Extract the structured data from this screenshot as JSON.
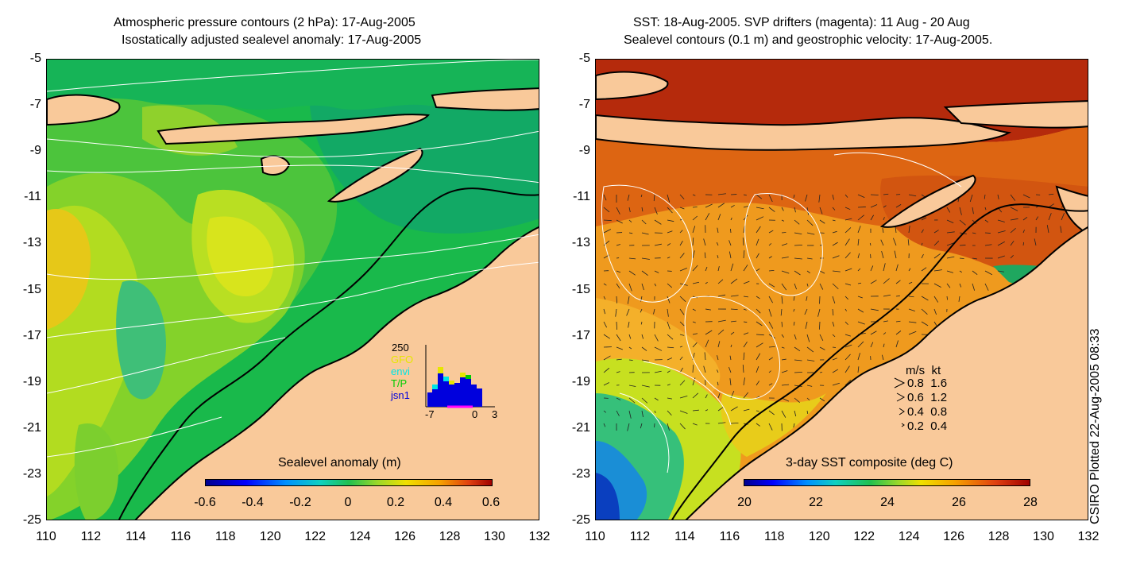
{
  "left": {
    "title_line1": "Atmospheric pressure contours (2 hPa): 17-Aug-2005",
    "title_line2": "Isostatically adjusted sealevel anomaly: 17-Aug-2005",
    "colorbar_title": "Sealevel anomaly (m)",
    "colorbar_ticks": [
      "-0.6",
      "-0.4",
      "-0.2",
      "0",
      "0.2",
      "0.4",
      "0.6"
    ],
    "histogram": {
      "ymax_label": "250",
      "legend": [
        {
          "label": "GFO",
          "color": "#e6e600"
        },
        {
          "label": "envi",
          "color": "#00e5e5"
        },
        {
          "label": "T/P",
          "color": "#00cc00"
        },
        {
          "label": "jsn1",
          "color": "#0000dd"
        }
      ],
      "x_ticks": [
        "-7",
        "0",
        "3"
      ]
    }
  },
  "right": {
    "title_line1": "SST: 18-Aug-2005. SVP drifters (magenta): 11 Aug - 20 Aug",
    "title_line2": "Sealevel contours (0.1 m) and geostrophic velocity: 17-Aug-2005.",
    "colorbar_title": "3-day SST composite (deg C)",
    "colorbar_ticks": [
      "20",
      "22",
      "24",
      "26",
      "28"
    ],
    "velocity_legend": {
      "header_ms": "m/s",
      "header_kt": "kt",
      "rows": [
        {
          "ms": "0.8",
          "kt": "1.6"
        },
        {
          "ms": "0.6",
          "kt": "1.2"
        },
        {
          "ms": "0.4",
          "kt": "0.8"
        },
        {
          "ms": "0.2",
          "kt": "0.4"
        }
      ]
    }
  },
  "axes": {
    "y_ticks": [
      "-5",
      "-7",
      "-9",
      "-11",
      "-13",
      "-15",
      "-17",
      "-19",
      "-21",
      "-23",
      "-25"
    ],
    "x_ticks": [
      "110",
      "112",
      "114",
      "116",
      "118",
      "120",
      "122",
      "124",
      "126",
      "128",
      "130",
      "132"
    ]
  },
  "credit": "CSIRO Plotted 22-Aug-2005 08:33",
  "colors": {
    "land": "#f9c99a",
    "ssl_base": "#19b94b",
    "sst_warm": "#c8380c",
    "sst_mid": "#ef8f1a"
  },
  "chart_data": [
    {
      "type": "heatmap",
      "title": "Atmospheric pressure contours (2 hPa): 17-Aug-2005 / Isostatically adjusted sealevel anomaly: 17-Aug-2005",
      "xlabel": "",
      "ylabel": "",
      "xlim": [
        110,
        132
      ],
      "ylim": [
        -25,
        -5
      ],
      "colorbar_label": "Sealevel anomaly (m)",
      "colorbar_range": [
        -0.6,
        0.6
      ]
    },
    {
      "type": "heatmap",
      "title": "SST: 18-Aug-2005. SVP drifters (magenta): 11 Aug - 20 Aug / Sealevel contours (0.1 m) and geostrophic velocity: 17-Aug-2005.",
      "xlabel": "",
      "ylabel": "",
      "xlim": [
        110,
        132
      ],
      "ylim": [
        -25,
        -5
      ],
      "colorbar_label": "3-day SST composite (deg C)",
      "colorbar_range": [
        20,
        28
      ],
      "velocity_scale_ms": [
        0.8,
        0.6,
        0.4,
        0.2
      ],
      "velocity_scale_kt": [
        1.6,
        1.2,
        0.8,
        0.4
      ]
    }
  ]
}
